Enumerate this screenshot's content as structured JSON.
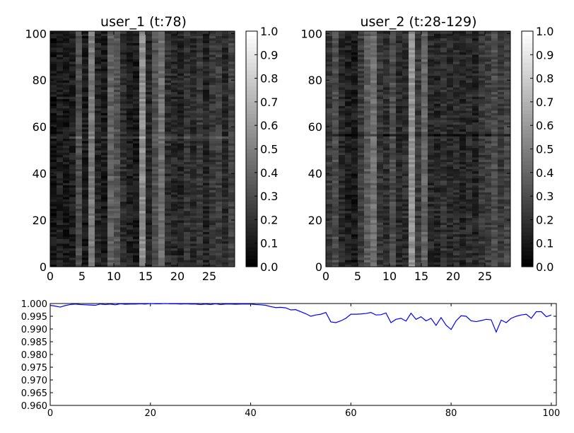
{
  "chart_data": [
    {
      "type": "heatmap",
      "title": "user_1 (t:78)",
      "colormap": "gray",
      "x_range": [
        0,
        29
      ],
      "y_range": [
        0,
        101
      ],
      "xticks": [
        "0",
        "5",
        "10",
        "15",
        "20",
        "25"
      ],
      "yticks": [
        "0",
        "20",
        "40",
        "60",
        "80",
        "100"
      ],
      "n_cols": 29,
      "n_rows": 101,
      "column_mean_intensity": [
        0.08,
        0.12,
        0.1,
        0.12,
        0.3,
        0.1,
        0.48,
        0.14,
        0.1,
        0.38,
        0.32,
        0.18,
        0.12,
        0.1,
        0.56,
        0.14,
        0.32,
        0.44,
        0.18,
        0.16,
        0.14,
        0.2,
        0.16,
        0.22,
        0.14,
        0.22,
        0.24,
        0.16,
        0.26
      ],
      "colorbar": {
        "range": [
          0.0,
          1.0
        ],
        "ticks": [
          "0.0",
          "0.1",
          "0.2",
          "0.3",
          "0.4",
          "0.5",
          "0.6",
          "0.7",
          "0.8",
          "0.9",
          "1.0"
        ]
      }
    },
    {
      "type": "heatmap",
      "title": "user_2 (t:28-129)",
      "colormap": "gray",
      "x_range": [
        0,
        29
      ],
      "y_range": [
        0,
        101
      ],
      "xticks": [
        "0",
        "5",
        "10",
        "15",
        "20",
        "25"
      ],
      "yticks": [
        "0",
        "20",
        "40",
        "60",
        "80",
        "100"
      ],
      "n_cols": 29,
      "n_rows": 101,
      "column_mean_intensity": [
        0.22,
        0.3,
        0.16,
        0.12,
        0.1,
        0.24,
        0.36,
        0.44,
        0.22,
        0.18,
        0.3,
        0.16,
        0.18,
        0.58,
        0.22,
        0.4,
        0.16,
        0.14,
        0.2,
        0.16,
        0.18,
        0.14,
        0.18,
        0.14,
        0.22,
        0.24,
        0.3,
        0.22,
        0.28
      ],
      "colorbar": {
        "range": [
          0.0,
          1.0
        ],
        "ticks": [
          "0.0",
          "0.1",
          "0.2",
          "0.3",
          "0.4",
          "0.5",
          "0.6",
          "0.7",
          "0.8",
          "0.9",
          "1.0"
        ]
      }
    },
    {
      "type": "line",
      "color": "#0000ff",
      "xlim": [
        0,
        101
      ],
      "ylim": [
        0.96,
        1.0
      ],
      "xticks": [
        "0",
        "20",
        "40",
        "60",
        "80",
        "100"
      ],
      "yticks": [
        "0.960",
        "0.965",
        "0.970",
        "0.975",
        "0.980",
        "0.985",
        "0.990",
        "0.995",
        "1.000"
      ],
      "x": [
        0,
        1,
        2,
        3,
        4,
        5,
        6,
        7,
        8,
        9,
        10,
        11,
        12,
        13,
        14,
        15,
        16,
        17,
        18,
        19,
        20,
        21,
        22,
        23,
        24,
        25,
        26,
        27,
        28,
        29,
        30,
        31,
        32,
        33,
        34,
        35,
        36,
        37,
        38,
        39,
        40,
        41,
        42,
        43,
        44,
        45,
        46,
        47,
        48,
        49,
        50,
        51,
        52,
        53,
        54,
        55,
        56,
        57,
        58,
        59,
        60,
        61,
        62,
        63,
        64,
        65,
        66,
        67,
        68,
        69,
        70,
        71,
        72,
        73,
        74,
        75,
        76,
        77,
        78,
        79,
        80,
        81,
        82,
        83,
        84,
        85,
        86,
        87,
        88,
        89,
        90,
        91,
        92,
        93,
        94,
        95,
        96,
        97,
        98,
        99,
        100
      ],
      "y": [
        0.9993,
        0.999,
        0.9986,
        0.9992,
        0.9996,
        0.9998,
        0.9996,
        0.9995,
        0.9994,
        0.9993,
        0.9998,
        0.9996,
        0.9998,
        0.9995,
        0.9999,
        0.9997,
        0.9998,
        0.9998,
        0.9999,
        0.9998,
        1.0,
        0.9999,
        0.9999,
        1.0,
        0.9999,
        0.9999,
        0.9998,
        0.9999,
        0.9998,
        0.9998,
        0.9996,
        0.9998,
        0.9996,
        0.9999,
        0.9996,
        0.9998,
        0.9998,
        0.9997,
        0.9998,
        0.9998,
        0.9998,
        0.9996,
        0.9995,
        0.9993,
        0.9988,
        0.9984,
        0.9985,
        0.9983,
        0.9975,
        0.9976,
        0.9968,
        0.996,
        0.995,
        0.9955,
        0.9958,
        0.9965,
        0.9928,
        0.9925,
        0.9932,
        0.9942,
        0.9958,
        0.9958,
        0.9959,
        0.9961,
        0.9965,
        0.9955,
        0.9956,
        0.9963,
        0.9925,
        0.9938,
        0.9942,
        0.9931,
        0.9962,
        0.9938,
        0.9948,
        0.9932,
        0.9942,
        0.9914,
        0.9945,
        0.9915,
        0.9898,
        0.9932,
        0.9952,
        0.995,
        0.9932,
        0.9929,
        0.9933,
        0.9938,
        0.9936,
        0.9888,
        0.9935,
        0.9925,
        0.9942,
        0.995,
        0.9955,
        0.9958,
        0.9942,
        0.9968,
        0.9968,
        0.9948,
        0.9955
      ]
    }
  ]
}
